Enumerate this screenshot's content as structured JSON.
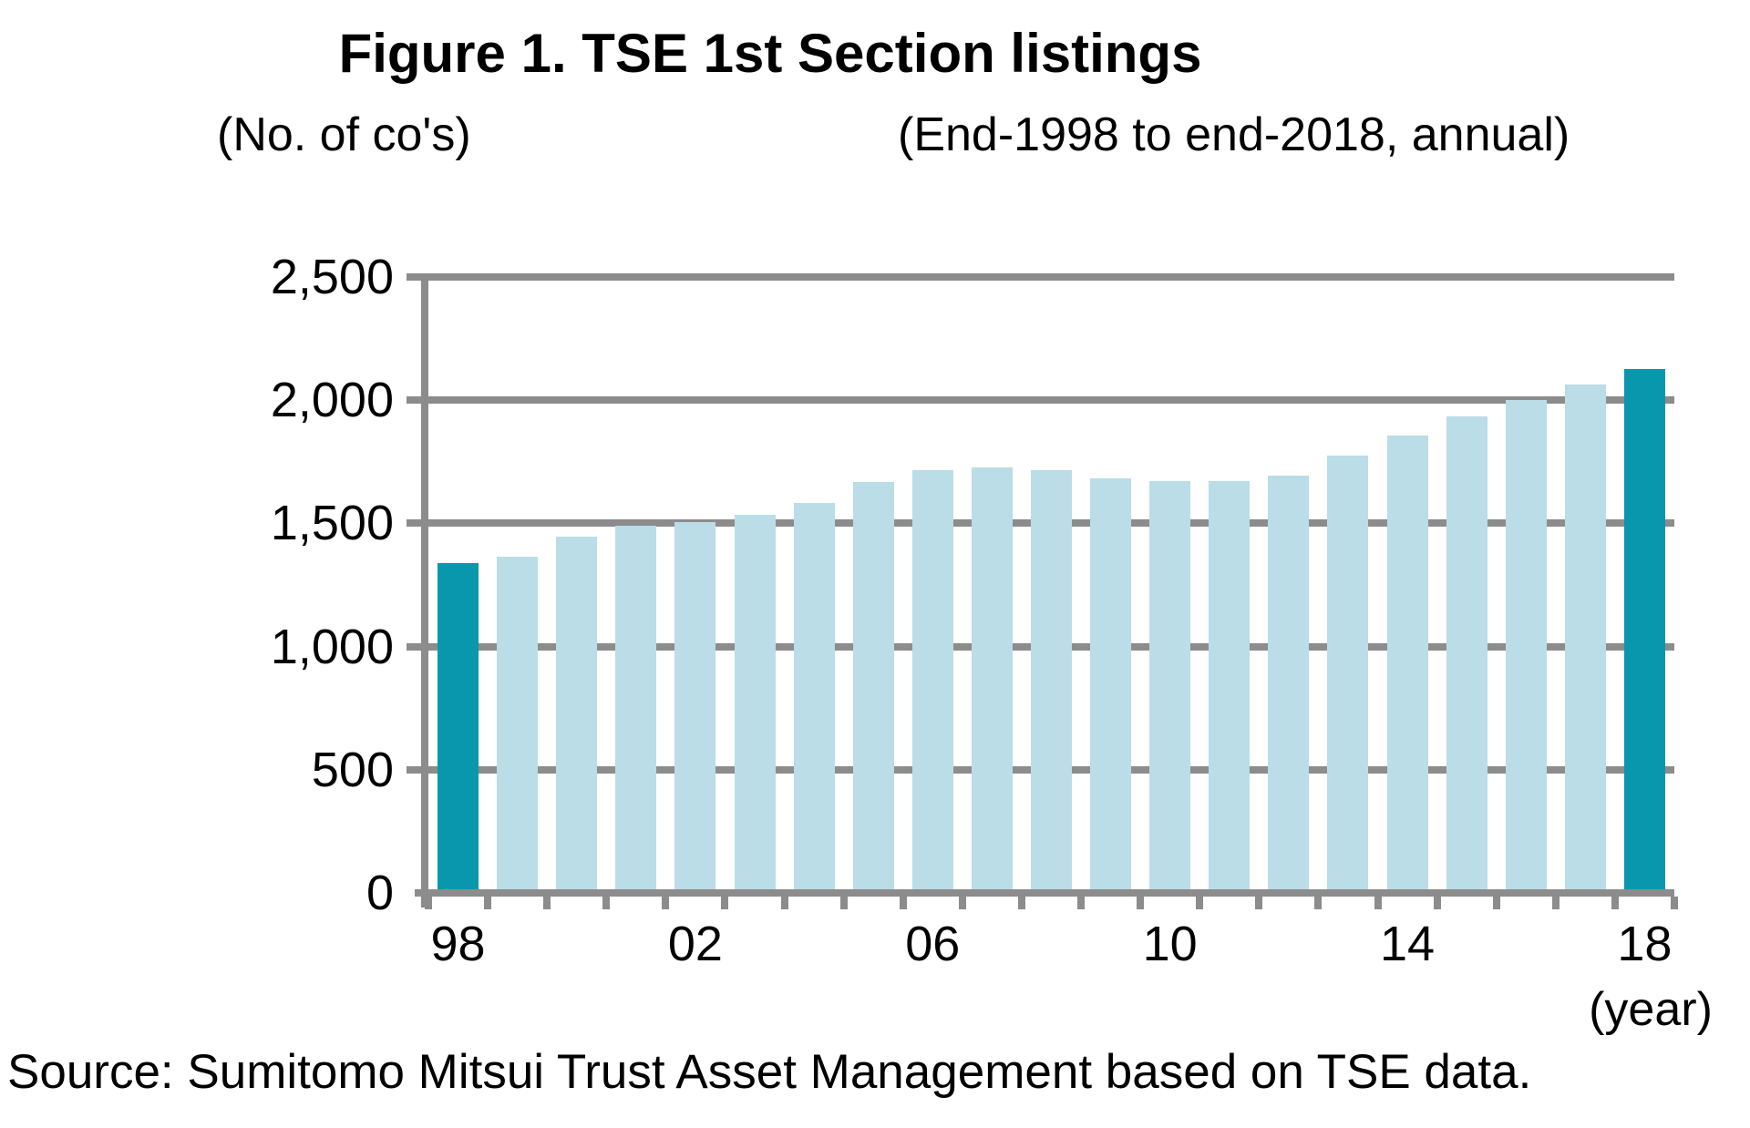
{
  "figure": {
    "title": "Figure 1. TSE 1st Section listings",
    "unit_note": "(No. of co's)",
    "period_note": "(End-1998 to end-2018,  annual)",
    "year_note": "(year)",
    "source": "Source: Sumitomo Mitsui Trust Asset Management based on TSE data."
  },
  "colors": {
    "bar": "#BADDE7",
    "bar_highlight": "#0897AC",
    "axis_gray": "#8C8C8C",
    "text": "#000000"
  },
  "chart_data": {
    "type": "bar",
    "title": "Figure 1. TSE 1st Section listings",
    "subtitle": "(End-1998 to end-2018, annual)",
    "ylabel": "(No. of co's)",
    "xlabel": "(year)",
    "x": [
      1998,
      1999,
      2000,
      2001,
      2002,
      2003,
      2004,
      2005,
      2006,
      2007,
      2008,
      2009,
      2010,
      2011,
      2012,
      2013,
      2014,
      2015,
      2016,
      2017,
      2018
    ],
    "values": [
      1340,
      1364,
      1447,
      1491,
      1505,
      1533,
      1583,
      1667,
      1715,
      1727,
      1715,
      1684,
      1670,
      1672,
      1695,
      1774,
      1858,
      1934,
      2002,
      2062,
      2128
    ],
    "highlight_indices": [
      0,
      20
    ],
    "ylim": [
      0,
      2500
    ],
    "ytick_step": 500,
    "ytick_labels": [
      "0",
      "500",
      "1,000",
      "1,500",
      "2,000",
      "2,500"
    ],
    "x_axis_labels": [
      "98",
      "02",
      "06",
      "10",
      "14",
      "18"
    ],
    "x_axis_label_years": [
      1998,
      2002,
      2006,
      2010,
      2014,
      2018
    ],
    "grid": true,
    "legend_position": "none",
    "source": "Source: Sumitomo Mitsui Trust Asset Management based on TSE data."
  }
}
